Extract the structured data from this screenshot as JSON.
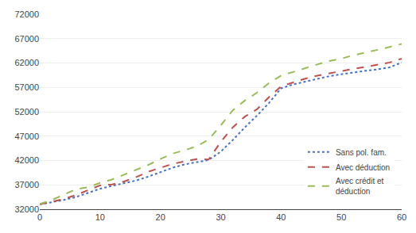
{
  "chart_data": {
    "type": "line",
    "x": [
      0,
      2,
      4,
      6,
      8,
      10,
      12,
      14,
      16,
      18,
      20,
      22,
      24,
      26,
      28,
      30,
      32,
      34,
      36,
      38,
      40,
      42,
      44,
      46,
      48,
      50,
      52,
      54,
      56,
      58,
      60
    ],
    "series": [
      {
        "name": "Sans pol. fam.",
        "color": "#4472C4",
        "line_style": "dotted",
        "values": [
          33000,
          33400,
          33900,
          34500,
          35300,
          36200,
          36800,
          37300,
          37900,
          38700,
          39600,
          40500,
          41200,
          41700,
          42100,
          43800,
          46200,
          48800,
          51200,
          53800,
          56800,
          57600,
          58200,
          58800,
          59300,
          59700,
          60100,
          60400,
          60700,
          61100,
          62100
        ]
      },
      {
        "name": "Avec déduction",
        "color": "#C0504D",
        "line_style": "dashed",
        "values": [
          33000,
          33500,
          34100,
          34900,
          35900,
          36900,
          37100,
          37700,
          38600,
          39700,
          40500,
          41300,
          41800,
          42300,
          42200,
          45800,
          48800,
          51000,
          52500,
          55000,
          57200,
          58000,
          58800,
          59400,
          59900,
          60300,
          60800,
          61200,
          61600,
          62100,
          62900
        ]
      },
      {
        "name": "Avec crédit et\ndéduction",
        "color": "#9BBB59",
        "line_style": "dashed",
        "values": [
          33100,
          33900,
          35000,
          36100,
          36500,
          37400,
          38100,
          39100,
          40100,
          41100,
          42300,
          43400,
          44100,
          44900,
          46300,
          49200,
          52300,
          54300,
          55900,
          57900,
          59400,
          60200,
          61000,
          61700,
          62400,
          62900,
          63600,
          64100,
          64700,
          65300,
          65900
        ]
      }
    ],
    "xlim": [
      0,
      60
    ],
    "ylim": [
      32000,
      72000
    ],
    "xticks": [
      0,
      10,
      20,
      30,
      40,
      50,
      60
    ],
    "yticks": [
      32000,
      37000,
      42000,
      47000,
      52000,
      57000,
      62000,
      67000,
      72000
    ],
    "grid": true,
    "legend": "lower right"
  }
}
